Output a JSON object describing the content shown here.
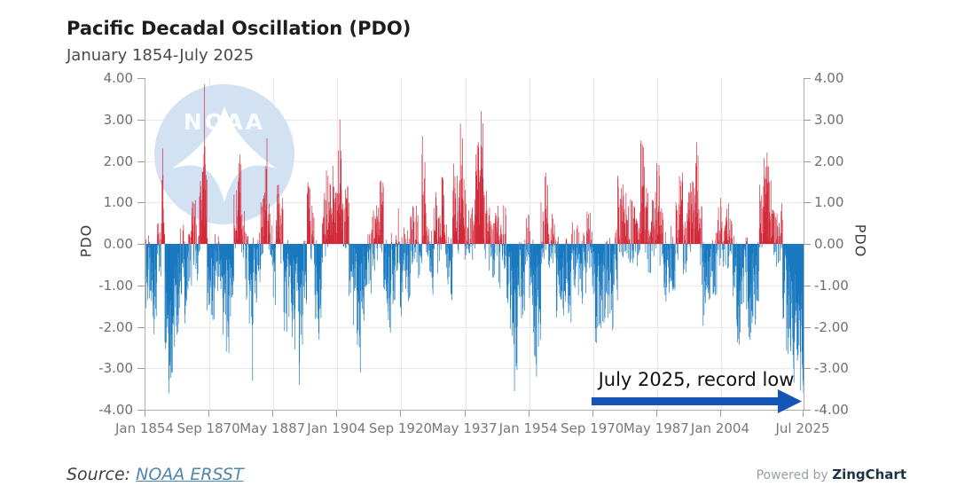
{
  "header": {
    "title": "Pacific Decadal Oscillation (PDO)",
    "subtitle": "January 1854-July 2025"
  },
  "watermark": {
    "text": "NOAA",
    "circle_color": "#d2e2f2",
    "mark_color": "#ffffff"
  },
  "footer": {
    "source_label": "Source:",
    "source_link": "NOAA ERSST",
    "powered_by": "Powered by",
    "brand": "ZingChart"
  },
  "chart_data": {
    "type": "bar",
    "title": "Pacific Decadal Oscillation (PDO)",
    "subtitle": "January 1854-July 2025",
    "ylabel_left": "PDO",
    "ylabel_right": "PDO",
    "ylim": [
      -4,
      4
    ],
    "y_tick_labels": [
      "4.00",
      "3.00",
      "2.00",
      "1.00",
      "0.00",
      "-1.00",
      "-2.00",
      "-3.00",
      "-4.00"
    ],
    "x_tick_labels": [
      "Jan 1854",
      "Sep 1870",
      "May 1887",
      "Jan 1904",
      "Sep 1920",
      "May 1937",
      "Jan 1954",
      "Sep 1970",
      "May 1987",
      "Jan 2004",
      "Jul 2025"
    ],
    "x_tick_month_index": [
      0,
      200,
      400,
      600,
      800,
      1000,
      1200,
      1400,
      1600,
      1800,
      2058
    ],
    "start": "1854-01",
    "end": "2025-07",
    "months_total": 2059,
    "grid": true,
    "legend": "none",
    "grid_color": "#e4e4e4",
    "axis_color": "#b0b0b0",
    "colors": {
      "positive": "#d22839",
      "negative": "#1878bf"
    },
    "series_annual_mean": {
      "note": "estimated annual-mean PDO read from the monthly bar chart; monthly bars reconstructed with deterministic noise",
      "start_year": 1854,
      "values": [
        -0.7,
        -1.0,
        -1.1,
        -0.2,
        0.9,
        -1.4,
        -2.0,
        -1.6,
        -1.2,
        -0.4,
        -0.9,
        -0.3,
        0.3,
        -0.2,
        0.8,
        1.4,
        -0.8,
        -1.2,
        -0.4,
        -0.6,
        -1.3,
        -1.5,
        -0.8,
        0.6,
        1.1,
        0.1,
        -0.6,
        -1.5,
        -0.8,
        -0.4,
        0.4,
        1.0,
        0.2,
        -0.6,
        0.7,
        0.3,
        -1.1,
        -0.9,
        -1.4,
        -1.1,
        -1.7,
        -0.9,
        0.6,
        0.3,
        -0.9,
        -1.2,
        0.4,
        0.8,
        1.0,
        0.5,
        1.3,
        0.9,
        0.5,
        -0.5,
        -1.0,
        -1.6,
        -1.1,
        -0.7,
        -0.5,
        0.1,
        0.4,
        0.7,
        -0.7,
        -1.1,
        -0.6,
        0.1,
        -0.8,
        -0.4,
        -0.5,
        0.3,
        0.2,
        -0.2,
        1.1,
        0.4,
        -0.4,
        0.4,
        0.0,
        0.9,
        -0.4,
        -0.7,
        1.1,
        0.7,
        1.4,
        0.5,
        0.3,
        0.4,
        1.5,
        1.7,
        0.5,
        0.1,
        -0.2,
        0.2,
        -0.4,
        0.2,
        -0.7,
        -1.3,
        -1.8,
        -1.0,
        -0.8,
        0.1,
        -0.6,
        -1.7,
        -1.4,
        0.2,
        0.8,
        0.0,
        0.0,
        -0.8,
        -1.0,
        -0.5,
        -0.9,
        -0.3,
        -0.4,
        -0.6,
        -0.4,
        0.1,
        -0.6,
        -1.4,
        -1.0,
        -0.9,
        -0.8,
        -1.1,
        -0.5,
        0.7,
        0.6,
        0.4,
        0.4,
        0.5,
        0.3,
        1.3,
        0.5,
        -0.1,
        0.5,
        1.0,
        0.1,
        -0.5,
        -0.4,
        -0.3,
        0.5,
        0.8,
        0.0,
        0.4,
        0.6,
        1.1,
        0.2,
        -1.0,
        -0.6,
        -0.7,
        -0.4,
        0.3,
        0.2,
        0.2,
        0.0,
        -0.5,
        -1.4,
        -0.7,
        -0.7,
        -1.3,
        -1.1,
        -0.5,
        0.7,
        1.2,
        1.0,
        0.3,
        0.0,
        0.3,
        -0.9,
        -1.5,
        -2.0,
        -1.8,
        -2.3
      ]
    },
    "final_year_monthly": {
      "year": 2025,
      "values": [
        -2.6,
        -2.9,
        -3.0,
        -3.3,
        -3.4,
        -3.6,
        -3.9
      ]
    },
    "extremes": [
      {
        "year": 1858,
        "month": 6,
        "value": 2.3
      },
      {
        "year": 1860,
        "month": 2,
        "value": -3.6
      },
      {
        "year": 1869,
        "month": 4,
        "value": 3.85
      },
      {
        "year": 1881,
        "month": 11,
        "value": -3.3
      },
      {
        "year": 1885,
        "month": 8,
        "value": 2.55
      },
      {
        "year": 1894,
        "month": 1,
        "value": -3.4
      },
      {
        "year": 1904,
        "month": 8,
        "value": 3.0
      },
      {
        "year": 1909,
        "month": 12,
        "value": -3.1
      },
      {
        "year": 1926,
        "month": 2,
        "value": 2.6
      },
      {
        "year": 1936,
        "month": 1,
        "value": 2.9
      },
      {
        "year": 1941,
        "month": 6,
        "value": 3.2
      },
      {
        "year": 1950,
        "month": 2,
        "value": -3.55
      },
      {
        "year": 1955,
        "month": 11,
        "value": -3.2
      },
      {
        "year": 1983,
        "month": 2,
        "value": 2.5
      },
      {
        "year": 1997,
        "month": 8,
        "value": 2.45
      },
      {
        "year": 2015,
        "month": 12,
        "value": 2.2
      },
      {
        "year": 2025,
        "month": 7,
        "value": -3.9
      }
    ],
    "annotation": {
      "text": "July 2025, record low",
      "arrow_color": "#1456b8",
      "points_to": {
        "x_label": "Jul 2025",
        "value": -3.9
      }
    }
  }
}
